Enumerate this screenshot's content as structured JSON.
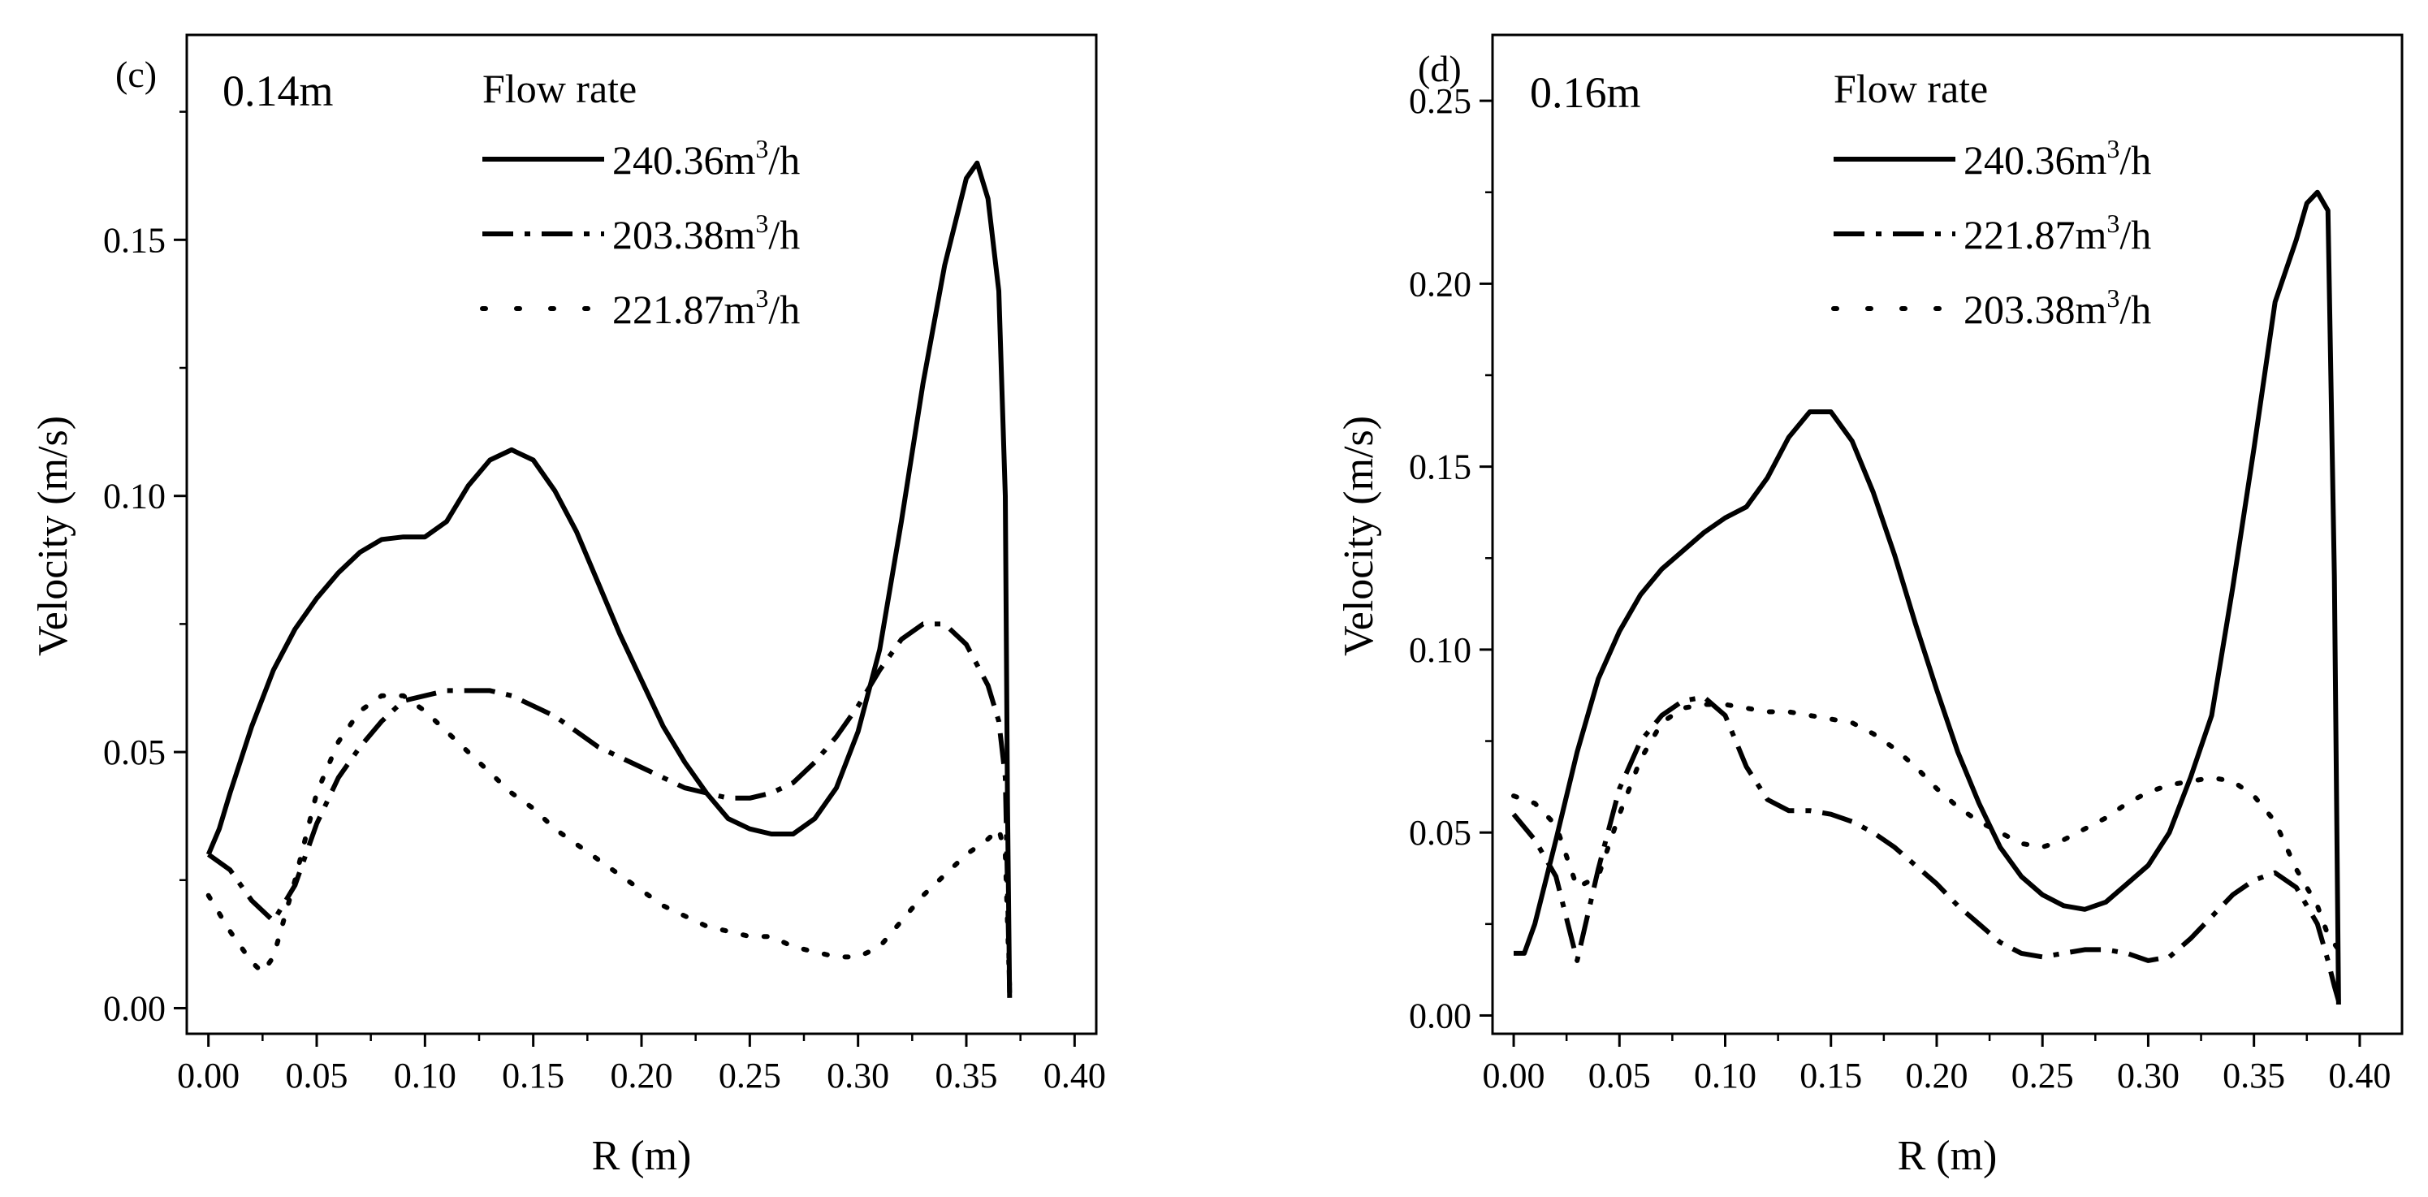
{
  "chart_data": [
    {
      "type": "line",
      "panel_label": "(c)",
      "height_label": "0.14m",
      "xlabel": "R (m)",
      "ylabel": "Velocity (m/s)",
      "xlim": [
        -0.01,
        0.41
      ],
      "ylim": [
        -0.005,
        0.19
      ],
      "xticks": [
        "0.00",
        "0.05",
        "0.10",
        "0.15",
        "0.20",
        "0.25",
        "0.30",
        "0.35",
        "0.40"
      ],
      "yticks": [
        "0.00",
        "0.05",
        "0.10",
        "0.15"
      ],
      "legend_title": "Flow rate",
      "legend_position": "top-center",
      "series": [
        {
          "name": "240.36",
          "unit_sup": "3",
          "unit_tail": "/h",
          "style": "solid",
          "x": [
            0.0,
            0.005,
            0.01,
            0.02,
            0.03,
            0.04,
            0.05,
            0.06,
            0.07,
            0.08,
            0.09,
            0.1,
            0.11,
            0.12,
            0.13,
            0.14,
            0.15,
            0.16,
            0.17,
            0.18,
            0.19,
            0.2,
            0.21,
            0.22,
            0.23,
            0.24,
            0.25,
            0.26,
            0.27,
            0.28,
            0.29,
            0.3,
            0.31,
            0.32,
            0.33,
            0.34,
            0.35,
            0.355,
            0.36,
            0.365,
            0.368,
            0.369,
            0.37
          ],
          "y": [
            0.03,
            0.035,
            0.042,
            0.055,
            0.066,
            0.074,
            0.08,
            0.085,
            0.089,
            0.0915,
            0.092,
            0.092,
            0.095,
            0.102,
            0.107,
            0.109,
            0.107,
            0.101,
            0.093,
            0.083,
            0.073,
            0.064,
            0.055,
            0.048,
            0.042,
            0.037,
            0.035,
            0.034,
            0.034,
            0.037,
            0.043,
            0.054,
            0.07,
            0.095,
            0.122,
            0.145,
            0.162,
            0.165,
            0.158,
            0.14,
            0.1,
            0.04,
            0.002
          ]
        },
        {
          "name": "203.38",
          "unit_sup": "3",
          "unit_tail": "/h",
          "style": "dashdot",
          "x": [
            0.0,
            0.01,
            0.02,
            0.03,
            0.04,
            0.05,
            0.06,
            0.07,
            0.08,
            0.09,
            0.1,
            0.11,
            0.12,
            0.13,
            0.14,
            0.15,
            0.16,
            0.17,
            0.18,
            0.19,
            0.2,
            0.21,
            0.22,
            0.23,
            0.24,
            0.25,
            0.26,
            0.27,
            0.28,
            0.29,
            0.3,
            0.31,
            0.32,
            0.33,
            0.34,
            0.35,
            0.36,
            0.365,
            0.368,
            0.37
          ],
          "y": [
            0.03,
            0.027,
            0.021,
            0.017,
            0.024,
            0.036,
            0.045,
            0.051,
            0.056,
            0.06,
            0.061,
            0.062,
            0.062,
            0.062,
            0.061,
            0.059,
            0.057,
            0.054,
            0.051,
            0.049,
            0.047,
            0.045,
            0.043,
            0.042,
            0.041,
            0.041,
            0.042,
            0.044,
            0.048,
            0.053,
            0.059,
            0.066,
            0.072,
            0.075,
            0.075,
            0.071,
            0.063,
            0.056,
            0.045,
            0.003
          ]
        },
        {
          "name": "221.87",
          "unit_sup": "3",
          "unit_tail": "/h",
          "style": "dotted",
          "x": [
            0.0,
            0.01,
            0.02,
            0.025,
            0.03,
            0.04,
            0.05,
            0.06,
            0.07,
            0.08,
            0.09,
            0.1,
            0.11,
            0.12,
            0.13,
            0.14,
            0.15,
            0.16,
            0.17,
            0.18,
            0.19,
            0.2,
            0.21,
            0.22,
            0.23,
            0.24,
            0.25,
            0.26,
            0.27,
            0.28,
            0.29,
            0.3,
            0.31,
            0.32,
            0.33,
            0.34,
            0.35,
            0.36,
            0.365,
            0.368,
            0.37
          ],
          "y": [
            0.022,
            0.015,
            0.009,
            0.007,
            0.01,
            0.025,
            0.042,
            0.052,
            0.058,
            0.061,
            0.061,
            0.058,
            0.054,
            0.05,
            0.046,
            0.042,
            0.039,
            0.035,
            0.032,
            0.029,
            0.026,
            0.023,
            0.02,
            0.018,
            0.016,
            0.015,
            0.014,
            0.014,
            0.012,
            0.011,
            0.01,
            0.01,
            0.012,
            0.017,
            0.022,
            0.026,
            0.03,
            0.033,
            0.035,
            0.03,
            0.004
          ]
        }
      ]
    },
    {
      "type": "line",
      "panel_label": "(d)",
      "height_label": "0.16m",
      "xlabel": "R (m)",
      "ylabel": "Velocity (m/s)",
      "xlim": [
        -0.01,
        0.42
      ],
      "ylim": [
        -0.005,
        0.268
      ],
      "xticks": [
        "0.00",
        "0.05",
        "0.10",
        "0.15",
        "0.20",
        "0.25",
        "0.30",
        "0.35",
        "0.40"
      ],
      "yticks": [
        "0.00",
        "0.05",
        "0.10",
        "0.15",
        "0.20",
        "0.25"
      ],
      "legend_title": "Flow rate",
      "legend_position": "top-right",
      "series": [
        {
          "name": "240.36",
          "unit_sup": "3",
          "unit_tail": "/h",
          "style": "solid",
          "x": [
            0.0,
            0.005,
            0.01,
            0.02,
            0.03,
            0.04,
            0.05,
            0.06,
            0.07,
            0.08,
            0.09,
            0.1,
            0.11,
            0.12,
            0.13,
            0.14,
            0.15,
            0.16,
            0.17,
            0.18,
            0.19,
            0.2,
            0.21,
            0.22,
            0.23,
            0.24,
            0.25,
            0.26,
            0.27,
            0.28,
            0.29,
            0.3,
            0.31,
            0.32,
            0.33,
            0.34,
            0.35,
            0.36,
            0.37,
            0.375,
            0.38,
            0.385,
            0.388,
            0.39
          ],
          "y": [
            0.017,
            0.017,
            0.025,
            0.048,
            0.072,
            0.092,
            0.105,
            0.115,
            0.122,
            0.127,
            0.132,
            0.136,
            0.139,
            0.147,
            0.158,
            0.165,
            0.165,
            0.157,
            0.143,
            0.126,
            0.107,
            0.089,
            0.072,
            0.058,
            0.046,
            0.038,
            0.033,
            0.03,
            0.029,
            0.031,
            0.036,
            0.041,
            0.05,
            0.065,
            0.082,
            0.117,
            0.155,
            0.195,
            0.212,
            0.222,
            0.225,
            0.22,
            0.12,
            0.003
          ]
        },
        {
          "name": "221.87",
          "unit_sup": "3",
          "unit_tail": "/h",
          "style": "dashdot",
          "x": [
            0.0,
            0.01,
            0.02,
            0.03,
            0.04,
            0.05,
            0.06,
            0.07,
            0.08,
            0.09,
            0.1,
            0.11,
            0.12,
            0.13,
            0.14,
            0.15,
            0.16,
            0.17,
            0.18,
            0.19,
            0.2,
            0.21,
            0.22,
            0.23,
            0.24,
            0.25,
            0.26,
            0.27,
            0.28,
            0.29,
            0.3,
            0.31,
            0.32,
            0.33,
            0.34,
            0.35,
            0.36,
            0.37,
            0.38,
            0.385,
            0.388,
            0.39
          ],
          "y": [
            0.055,
            0.048,
            0.038,
            0.015,
            0.04,
            0.062,
            0.075,
            0.082,
            0.086,
            0.087,
            0.082,
            0.068,
            0.059,
            0.056,
            0.056,
            0.055,
            0.053,
            0.05,
            0.046,
            0.041,
            0.036,
            0.03,
            0.025,
            0.02,
            0.017,
            0.016,
            0.017,
            0.018,
            0.018,
            0.017,
            0.015,
            0.016,
            0.021,
            0.027,
            0.033,
            0.037,
            0.039,
            0.035,
            0.025,
            0.015,
            0.008,
            0.004
          ]
        },
        {
          "name": "203.38",
          "unit_sup": "3",
          "unit_tail": "/h",
          "style": "dotted",
          "x": [
            0.0,
            0.01,
            0.02,
            0.03,
            0.04,
            0.05,
            0.06,
            0.07,
            0.08,
            0.09,
            0.1,
            0.11,
            0.12,
            0.13,
            0.14,
            0.15,
            0.16,
            0.17,
            0.18,
            0.19,
            0.2,
            0.21,
            0.22,
            0.23,
            0.24,
            0.25,
            0.26,
            0.27,
            0.28,
            0.29,
            0.3,
            0.31,
            0.32,
            0.33,
            0.34,
            0.35,
            0.36,
            0.37,
            0.38,
            0.385,
            0.39
          ],
          "y": [
            0.06,
            0.058,
            0.052,
            0.035,
            0.038,
            0.055,
            0.07,
            0.08,
            0.084,
            0.085,
            0.085,
            0.084,
            0.083,
            0.083,
            0.082,
            0.081,
            0.08,
            0.077,
            0.073,
            0.068,
            0.062,
            0.057,
            0.053,
            0.05,
            0.047,
            0.046,
            0.048,
            0.051,
            0.054,
            0.058,
            0.061,
            0.063,
            0.064,
            0.065,
            0.064,
            0.06,
            0.053,
            0.04,
            0.03,
            0.022,
            0.018
          ]
        }
      ]
    }
  ]
}
